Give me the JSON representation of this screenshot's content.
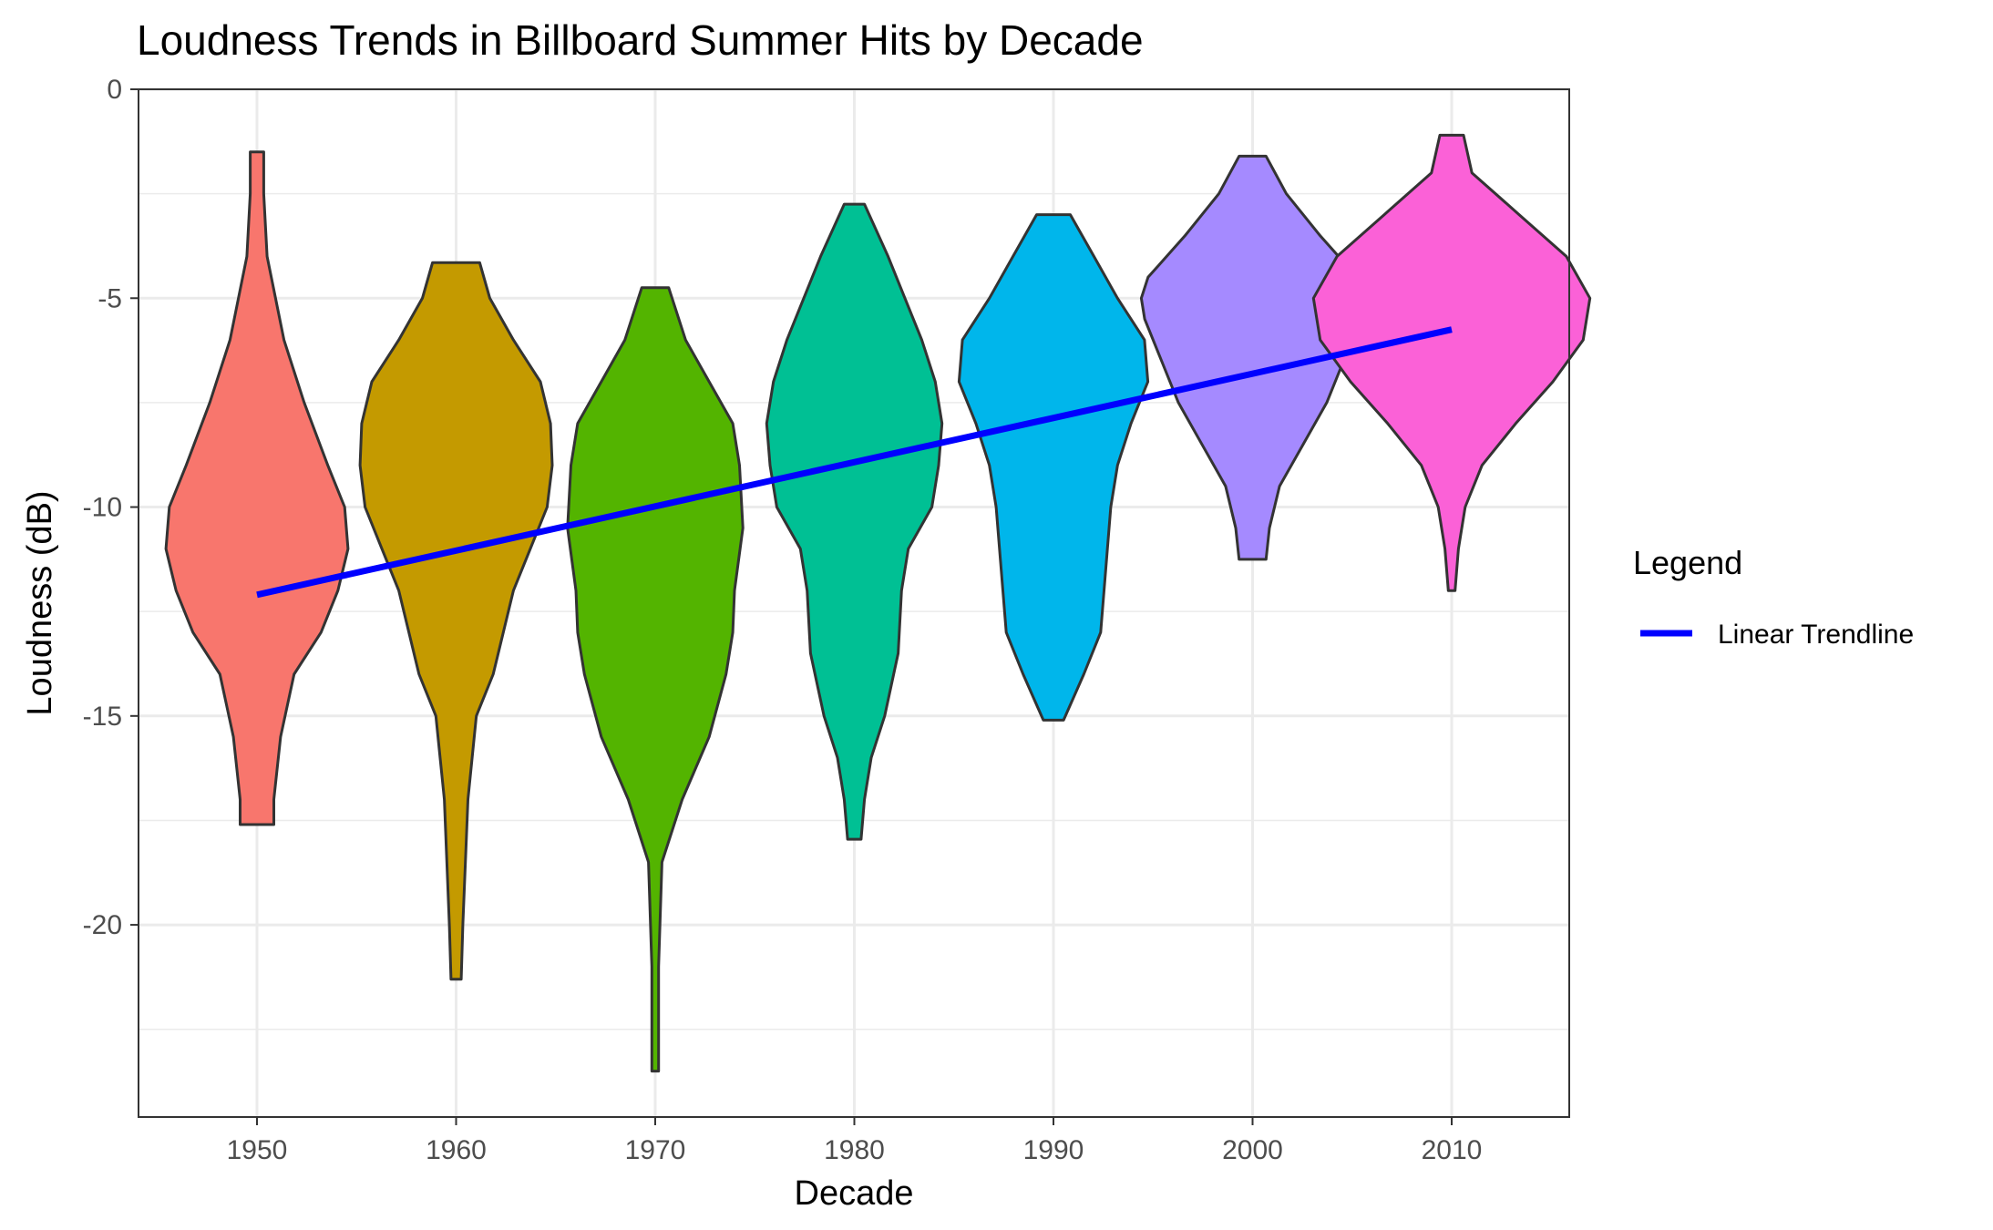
{
  "chart_data": {
    "type": "violin",
    "title": "Loudness Trends in Billboard Summer Hits by Decade",
    "xlabel": "Decade",
    "ylabel": "Loudness (dB)",
    "categories": [
      "1950",
      "1960",
      "1970",
      "1980",
      "1990",
      "2000",
      "2010"
    ],
    "x_ticks": [
      "1950",
      "1960",
      "1970",
      "1980",
      "1990",
      "2000",
      "2010"
    ],
    "y_ticks": [
      0,
      -5,
      -10,
      -15,
      -20
    ],
    "ylim": [
      -24.6,
      0
    ],
    "grid": true,
    "legend": {
      "title": "Legend",
      "position": "right",
      "entries": [
        "Linear Trendline"
      ]
    },
    "trendline": {
      "name": "Linear Trendline",
      "color": "#0000ff",
      "points": [
        [
          "1950",
          -12.1
        ],
        [
          "2010",
          -5.75
        ]
      ]
    },
    "violins": [
      {
        "category": "1950",
        "color": "#F8766D",
        "min": -17.6,
        "max": -1.5,
        "profile": [
          [
            -17.6,
            0.5
          ],
          [
            -17.0,
            0.5
          ],
          [
            -15.5,
            0.7
          ],
          [
            -14.0,
            1.1
          ],
          [
            -13.0,
            1.9
          ],
          [
            -12.0,
            2.4
          ],
          [
            -11.0,
            2.7
          ],
          [
            -10.0,
            2.6
          ],
          [
            -9.0,
            2.1
          ],
          [
            -7.5,
            1.4
          ],
          [
            -6.0,
            0.8
          ],
          [
            -4.0,
            0.3
          ],
          [
            -2.5,
            0.2
          ],
          [
            -1.5,
            0.2
          ]
        ]
      },
      {
        "category": "1960",
        "color": "#C49A00",
        "min": -21.3,
        "max": -4.15,
        "profile": [
          [
            -21.3,
            0.15
          ],
          [
            -20.0,
            0.2
          ],
          [
            -17.0,
            0.35
          ],
          [
            -15.0,
            0.6
          ],
          [
            -14.0,
            1.1
          ],
          [
            -12.0,
            1.7
          ],
          [
            -11.0,
            2.2
          ],
          [
            -10.0,
            2.7
          ],
          [
            -9.0,
            2.85
          ],
          [
            -8.0,
            2.8
          ],
          [
            -7.0,
            2.5
          ],
          [
            -6.0,
            1.7
          ],
          [
            -5.0,
            1.0
          ],
          [
            -4.15,
            0.7
          ]
        ]
      },
      {
        "category": "1970",
        "color": "#53B400",
        "min": -23.5,
        "max": -4.75,
        "profile": [
          [
            -23.5,
            0.1
          ],
          [
            -21.0,
            0.1
          ],
          [
            -18.5,
            0.2
          ],
          [
            -17.0,
            0.8
          ],
          [
            -15.5,
            1.6
          ],
          [
            -14.0,
            2.1
          ],
          [
            -13.0,
            2.3
          ],
          [
            -12.0,
            2.35
          ],
          [
            -10.5,
            2.6
          ],
          [
            -9.0,
            2.5
          ],
          [
            -8.0,
            2.3
          ],
          [
            -7.0,
            1.6
          ],
          [
            -6.0,
            0.9
          ],
          [
            -4.75,
            0.4
          ]
        ]
      },
      {
        "category": "1980",
        "color": "#00C094",
        "min": -17.95,
        "max": -2.75,
        "profile": [
          [
            -17.95,
            0.2
          ],
          [
            -17.0,
            0.3
          ],
          [
            -16.0,
            0.5
          ],
          [
            -15.0,
            0.9
          ],
          [
            -13.5,
            1.3
          ],
          [
            -12.0,
            1.4
          ],
          [
            -11.0,
            1.6
          ],
          [
            -10.0,
            2.3
          ],
          [
            -9.0,
            2.5
          ],
          [
            -8.0,
            2.6
          ],
          [
            -7.0,
            2.4
          ],
          [
            -6.0,
            2.0
          ],
          [
            -5.0,
            1.5
          ],
          [
            -4.0,
            1.0
          ],
          [
            -2.75,
            0.3
          ]
        ]
      },
      {
        "category": "1990",
        "color": "#00B6EB",
        "min": -15.1,
        "max": -3.0,
        "profile": [
          [
            -15.1,
            0.3
          ],
          [
            -14.0,
            0.9
          ],
          [
            -13.0,
            1.4
          ],
          [
            -12.0,
            1.5
          ],
          [
            -11.0,
            1.6
          ],
          [
            -10.0,
            1.7
          ],
          [
            -9.0,
            1.9
          ],
          [
            -8.0,
            2.3
          ],
          [
            -7.0,
            2.8
          ],
          [
            -6.0,
            2.7
          ],
          [
            -5.0,
            1.9
          ],
          [
            -4.0,
            1.2
          ],
          [
            -3.0,
            0.5
          ]
        ]
      },
      {
        "category": "2000",
        "color": "#A58AFF",
        "min": -11.25,
        "max": -1.6,
        "profile": [
          [
            -11.25,
            0.4
          ],
          [
            -10.5,
            0.5
          ],
          [
            -9.5,
            0.8
          ],
          [
            -8.5,
            1.5
          ],
          [
            -7.5,
            2.2
          ],
          [
            -6.5,
            2.7
          ],
          [
            -5.5,
            3.2
          ],
          [
            -5.0,
            3.3
          ],
          [
            -4.5,
            3.1
          ],
          [
            -3.5,
            2.0
          ],
          [
            -2.5,
            1.0
          ],
          [
            -1.6,
            0.4
          ]
        ]
      },
      {
        "category": "2010",
        "color": "#FB61D7",
        "min": -12.0,
        "max": -1.1,
        "profile": [
          [
            -12.0,
            0.1
          ],
          [
            -11.0,
            0.2
          ],
          [
            -10.0,
            0.4
          ],
          [
            -9.0,
            0.9
          ],
          [
            -8.0,
            1.9
          ],
          [
            -7.0,
            3.0
          ],
          [
            -6.0,
            3.9
          ],
          [
            -5.0,
            4.1
          ],
          [
            -4.0,
            3.4
          ],
          [
            -3.0,
            2.0
          ],
          [
            -2.0,
            0.6
          ],
          [
            -1.1,
            0.35
          ]
        ]
      }
    ]
  }
}
